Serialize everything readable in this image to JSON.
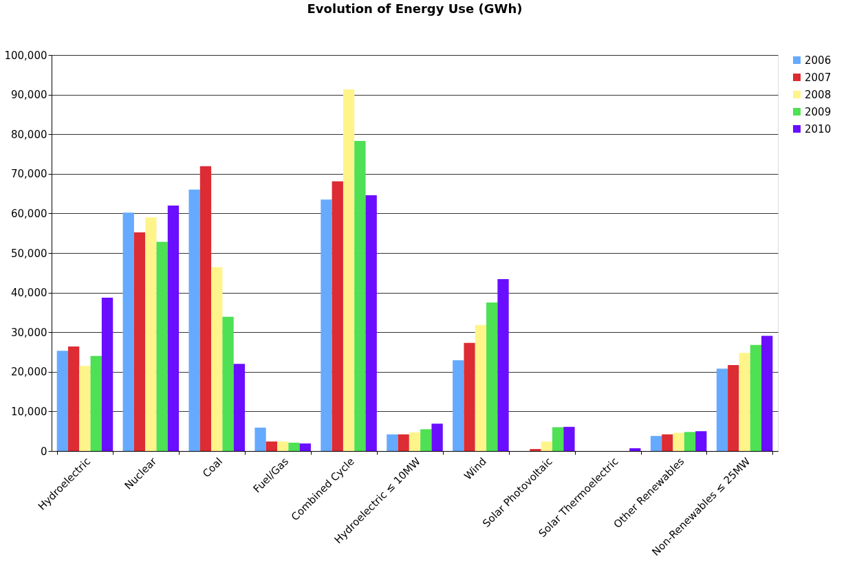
{
  "chart_data": {
    "type": "bar",
    "title": "Evolution of Energy Use (GWh)",
    "categories": [
      "Hydroelectric",
      "Nuclear",
      "Coal",
      "Fuel/Gas",
      "Combined Cycle",
      "Hydroelectric ≤ 10MW",
      "Wind",
      "Solar Photovoltaic",
      "Solar Thermoelectric",
      "Other Renewables",
      "Non-Renewables ≤ 25MW"
    ],
    "series": [
      {
        "name": "2006",
        "color": "#66aaff",
        "values": [
          25300,
          60200,
          66000,
          5900,
          63500,
          4200,
          22900,
          0,
          0,
          3800,
          20800
        ]
      },
      {
        "name": "2007",
        "color": "#dd2c33",
        "values": [
          26400,
          55200,
          71900,
          2400,
          68100,
          4200,
          27300,
          500,
          0,
          4200,
          21700
        ]
      },
      {
        "name": "2008",
        "color": "#fff48a",
        "values": [
          21500,
          59000,
          46400,
          2400,
          91300,
          4700,
          31800,
          2400,
          0,
          4600,
          24800
        ]
      },
      {
        "name": "2009",
        "color": "#4ee055",
        "values": [
          24000,
          52800,
          33900,
          2100,
          78300,
          5500,
          37500,
          6000,
          0,
          4800,
          26800
        ]
      },
      {
        "name": "2010",
        "color": "#6a0eff",
        "values": [
          38700,
          62000,
          22000,
          1900,
          64600,
          6900,
          43400,
          6100,
          700,
          5000,
          29100
        ]
      }
    ],
    "ylim": [
      0,
      100000
    ],
    "yticks": [
      {
        "value": 0,
        "label": "0"
      },
      {
        "value": 10000,
        "label": "10,000"
      },
      {
        "value": 20000,
        "label": "20,000"
      },
      {
        "value": 30000,
        "label": "30,000"
      },
      {
        "value": 40000,
        "label": "40,000"
      },
      {
        "value": 50000,
        "label": "50,000"
      },
      {
        "value": 60000,
        "label": "60,000"
      },
      {
        "value": 70000,
        "label": "70,000"
      },
      {
        "value": 80000,
        "label": "80,000"
      },
      {
        "value": 90000,
        "label": "90,000"
      },
      {
        "value": 100000,
        "label": "100,000"
      }
    ],
    "grid": "y",
    "legend": "right"
  }
}
